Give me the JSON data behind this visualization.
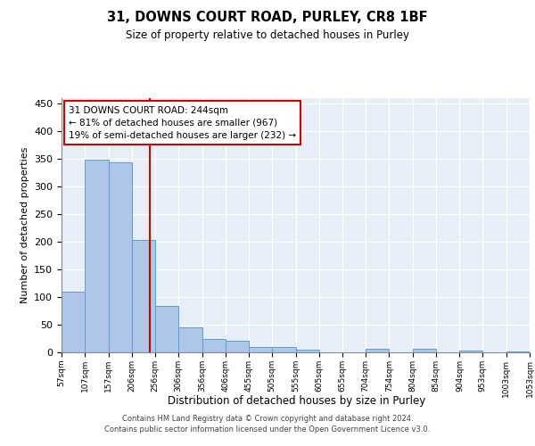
{
  "title": "31, DOWNS COURT ROAD, PURLEY, CR8 1BF",
  "subtitle": "Size of property relative to detached houses in Purley",
  "xlabel": "Distribution of detached houses by size in Purley",
  "ylabel": "Number of detached properties",
  "footer_line1": "Contains HM Land Registry data © Crown copyright and database right 2024.",
  "footer_line2": "Contains public sector information licensed under the Open Government Licence v3.0.",
  "annotation_line1": "31 DOWNS COURT ROAD: 244sqm",
  "annotation_line2": "← 81% of detached houses are smaller (967)",
  "annotation_line3": "19% of semi-detached houses are larger (232) →",
  "bin_edges": [
    57,
    107,
    157,
    206,
    256,
    306,
    356,
    406,
    455,
    505,
    555,
    605,
    655,
    704,
    754,
    804,
    854,
    904,
    953,
    1003,
    1053
  ],
  "bar_heights": [
    109,
    348,
    343,
    204,
    84,
    46,
    24,
    21,
    10,
    10,
    5,
    0,
    0,
    7,
    0,
    7,
    0,
    3,
    0,
    1
  ],
  "bar_color": "#aec6e8",
  "bar_edge_color": "#5a9fd4",
  "vline_color": "#cc0000",
  "vline_x": 244,
  "annotation_box_edgecolor": "#cc0000",
  "plot_bg_color": "#e8eef8",
  "ylim_max": 460,
  "yticks": [
    0,
    50,
    100,
    150,
    200,
    250,
    300,
    350,
    400,
    450
  ]
}
